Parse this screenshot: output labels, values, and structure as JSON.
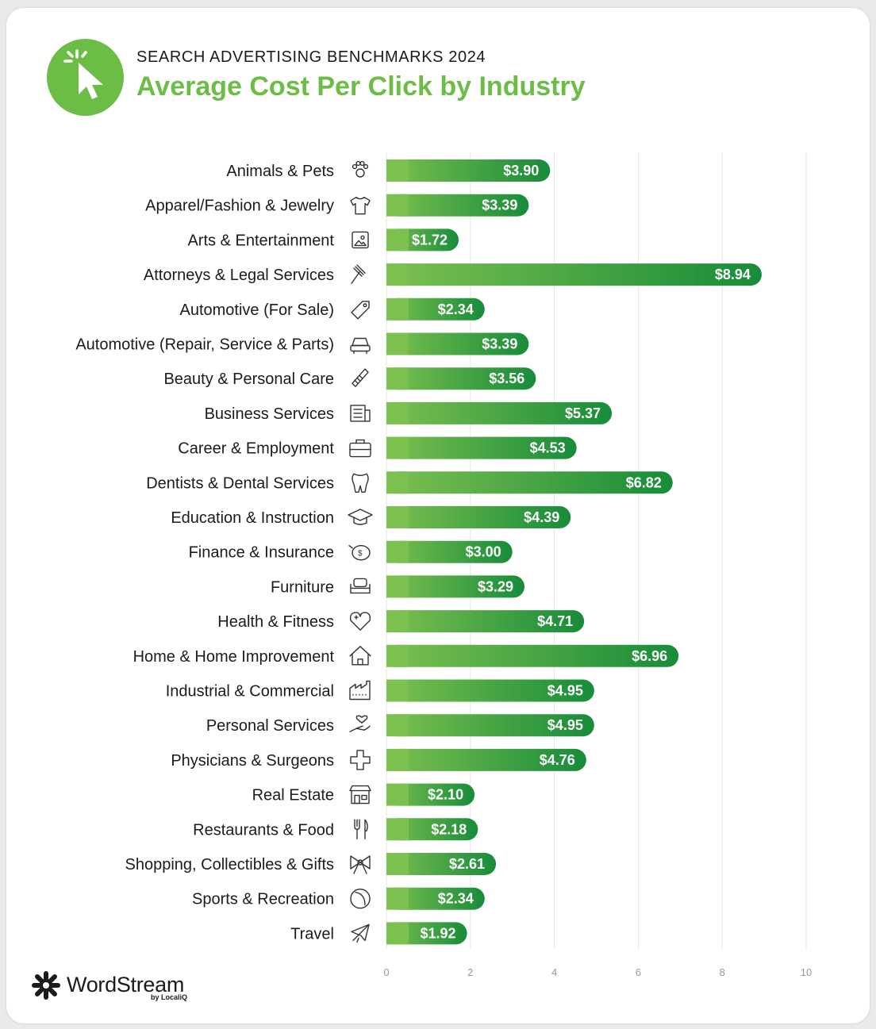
{
  "header": {
    "subtitle": "SEARCH ADVERTISING BENCHMARKS 2024",
    "title": "Average Cost Per Click by Industry"
  },
  "brand": {
    "name": "WordStream",
    "by": "by LocaliQ"
  },
  "colors": {
    "accent": "#6cbd45",
    "bar_light": "#7cc04f",
    "bar_dark": "#178c3a",
    "text": "#1b1b1b",
    "grid": "#e6e6e6"
  },
  "chart_data": {
    "type": "bar",
    "orientation": "horizontal",
    "title": "Average Cost Per Click by Industry",
    "subtitle": "SEARCH ADVERTISING BENCHMARKS 2024",
    "xlim": [
      0,
      10
    ],
    "xticks": [
      0,
      2,
      4,
      6,
      8,
      10
    ],
    "grid": true,
    "categories": [
      "Animals & Pets",
      "Apparel/Fashion & Jewelry",
      "Arts & Entertainment",
      "Attorneys & Legal Services",
      "Automotive (For Sale)",
      "Automotive (Repair, Service & Parts)",
      "Beauty & Personal Care",
      "Business Services",
      "Career & Employment",
      "Dentists & Dental Services",
      "Education & Instruction",
      "Finance & Insurance",
      "Furniture",
      "Health & Fitness",
      "Home & Home Improvement",
      "Industrial & Commercial",
      "Personal Services",
      "Physicians & Surgeons",
      "Real Estate",
      "Restaurants & Food",
      "Shopping, Collectibles & Gifts",
      "Sports & Recreation",
      "Travel"
    ],
    "values": [
      3.9,
      3.39,
      1.72,
      8.94,
      2.34,
      3.39,
      3.56,
      5.37,
      4.53,
      6.82,
      4.39,
      3.0,
      3.29,
      4.71,
      6.96,
      4.95,
      4.95,
      4.76,
      2.1,
      2.18,
      2.61,
      2.34,
      1.92
    ],
    "value_labels": [
      "$3.90",
      "$3.39",
      "$1.72",
      "$8.94",
      "$2.34",
      "$3.39",
      "$3.56",
      "$5.37",
      "$4.53",
      "$6.82",
      "$4.39",
      "$3.00",
      "$3.29",
      "$4.71",
      "$6.96",
      "$4.95",
      "$4.95",
      "$4.76",
      "$2.10",
      "$2.18",
      "$2.61",
      "$2.34",
      "$1.92"
    ],
    "icons": [
      "paw-icon",
      "tshirt-icon",
      "picture-frame-icon",
      "gavel-icon",
      "price-tag-icon",
      "car-icon",
      "comb-icon",
      "document-icon",
      "briefcase-icon",
      "tooth-icon",
      "graduation-cap-icon",
      "piggy-bank-icon",
      "armchair-icon",
      "heart-icon",
      "house-icon",
      "factory-icon",
      "hand-heart-icon",
      "medical-cross-icon",
      "storefront-icon",
      "fork-knife-icon",
      "bow-icon",
      "ball-icon",
      "airplane-icon"
    ]
  }
}
